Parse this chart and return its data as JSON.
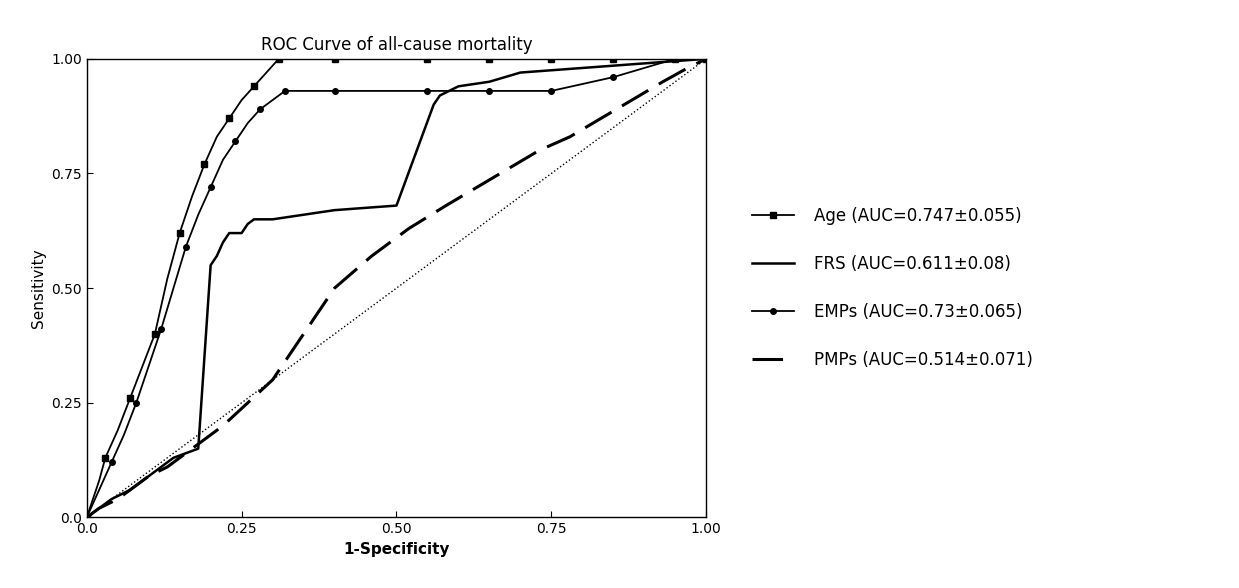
{
  "title": "ROC Curve of all-cause mortality",
  "xlabel": "1-Specificity",
  "ylabel": "Sensitivity",
  "xlim": [
    0.0,
    1.0
  ],
  "ylim": [
    0.0,
    1.0
  ],
  "xticks": [
    0.0,
    0.25,
    0.5,
    0.75,
    1.0
  ],
  "yticks": [
    0.0,
    0.25,
    0.5,
    0.75,
    1.0
  ],
  "legend_labels": [
    "Age (AUC=0.747±0.055)",
    "FRS (AUC=0.611±0.08)",
    "EMPs (AUC=0.73±0.065)",
    "PMPs (AUC=0.514±0.071)"
  ],
  "age_x": [
    0.0,
    0.01,
    0.02,
    0.03,
    0.05,
    0.07,
    0.09,
    0.11,
    0.13,
    0.15,
    0.17,
    0.19,
    0.21,
    0.23,
    0.25,
    0.27,
    0.29,
    0.31,
    0.4,
    0.55,
    0.65,
    0.75,
    0.85,
    0.95,
    1.0
  ],
  "age_y": [
    0.0,
    0.04,
    0.08,
    0.13,
    0.19,
    0.26,
    0.33,
    0.4,
    0.52,
    0.62,
    0.7,
    0.77,
    0.83,
    0.87,
    0.91,
    0.94,
    0.97,
    1.0,
    1.0,
    1.0,
    1.0,
    1.0,
    1.0,
    1.0,
    1.0
  ],
  "age_markers_x": [
    0.0,
    0.03,
    0.07,
    0.11,
    0.15,
    0.19,
    0.23,
    0.27,
    0.31,
    0.4,
    0.55,
    0.65,
    0.75,
    0.85,
    0.95,
    1.0
  ],
  "age_markers_y": [
    0.0,
    0.13,
    0.26,
    0.4,
    0.62,
    0.77,
    0.87,
    0.94,
    1.0,
    1.0,
    1.0,
    1.0,
    1.0,
    1.0,
    1.0,
    1.0
  ],
  "frs_x": [
    0.0,
    0.01,
    0.02,
    0.04,
    0.07,
    0.1,
    0.14,
    0.18,
    0.2,
    0.21,
    0.22,
    0.23,
    0.25,
    0.26,
    0.27,
    0.3,
    0.35,
    0.4,
    0.5,
    0.56,
    0.57,
    0.6,
    0.65,
    0.7,
    0.8,
    0.9,
    1.0
  ],
  "frs_y": [
    0.0,
    0.01,
    0.02,
    0.04,
    0.06,
    0.09,
    0.13,
    0.15,
    0.55,
    0.57,
    0.6,
    0.62,
    0.62,
    0.64,
    0.65,
    0.65,
    0.66,
    0.67,
    0.68,
    0.9,
    0.92,
    0.94,
    0.95,
    0.97,
    0.98,
    0.99,
    1.0
  ],
  "emps_x": [
    0.0,
    0.01,
    0.02,
    0.04,
    0.06,
    0.08,
    0.1,
    0.12,
    0.14,
    0.16,
    0.18,
    0.2,
    0.22,
    0.24,
    0.26,
    0.28,
    0.3,
    0.32,
    0.4,
    0.55,
    0.65,
    0.75,
    0.85,
    0.95,
    1.0
  ],
  "emps_y": [
    0.0,
    0.03,
    0.06,
    0.12,
    0.18,
    0.25,
    0.33,
    0.41,
    0.5,
    0.59,
    0.66,
    0.72,
    0.78,
    0.82,
    0.86,
    0.89,
    0.91,
    0.93,
    0.93,
    0.93,
    0.93,
    0.93,
    0.96,
    1.0,
    1.0
  ],
  "emps_markers_x": [
    0.0,
    0.04,
    0.08,
    0.12,
    0.16,
    0.2,
    0.24,
    0.28,
    0.32,
    0.4,
    0.55,
    0.65,
    0.75,
    0.85,
    0.95
  ],
  "emps_markers_y": [
    0.0,
    0.12,
    0.25,
    0.41,
    0.59,
    0.72,
    0.82,
    0.89,
    0.93,
    0.93,
    0.93,
    0.93,
    0.93,
    0.96,
    1.0
  ],
  "pmps_x": [
    0.0,
    0.02,
    0.05,
    0.08,
    0.1,
    0.13,
    0.16,
    0.19,
    0.22,
    0.26,
    0.3,
    0.35,
    0.4,
    0.46,
    0.52,
    0.58,
    0.63,
    0.68,
    0.73,
    0.78,
    0.83,
    0.88,
    0.93,
    0.97,
    1.0
  ],
  "pmps_y": [
    0.0,
    0.02,
    0.04,
    0.07,
    0.09,
    0.11,
    0.14,
    0.17,
    0.2,
    0.25,
    0.3,
    0.4,
    0.5,
    0.57,
    0.63,
    0.68,
    0.72,
    0.76,
    0.8,
    0.83,
    0.87,
    0.91,
    0.95,
    0.98,
    1.0
  ],
  "color": "#000000",
  "background": "#ffffff",
  "title_fontsize": 12,
  "label_fontsize": 11,
  "tick_fontsize": 10,
  "legend_fontsize": 12
}
